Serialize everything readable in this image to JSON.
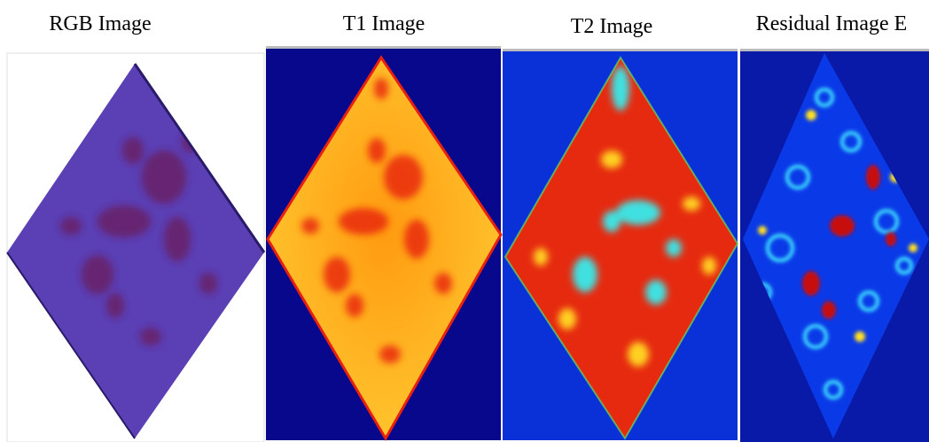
{
  "panels": [
    {
      "title": "RGB Image"
    },
    {
      "title": "T1 Image"
    },
    {
      "title": "T2 Image"
    },
    {
      "title": "Residual Image E"
    }
  ]
}
